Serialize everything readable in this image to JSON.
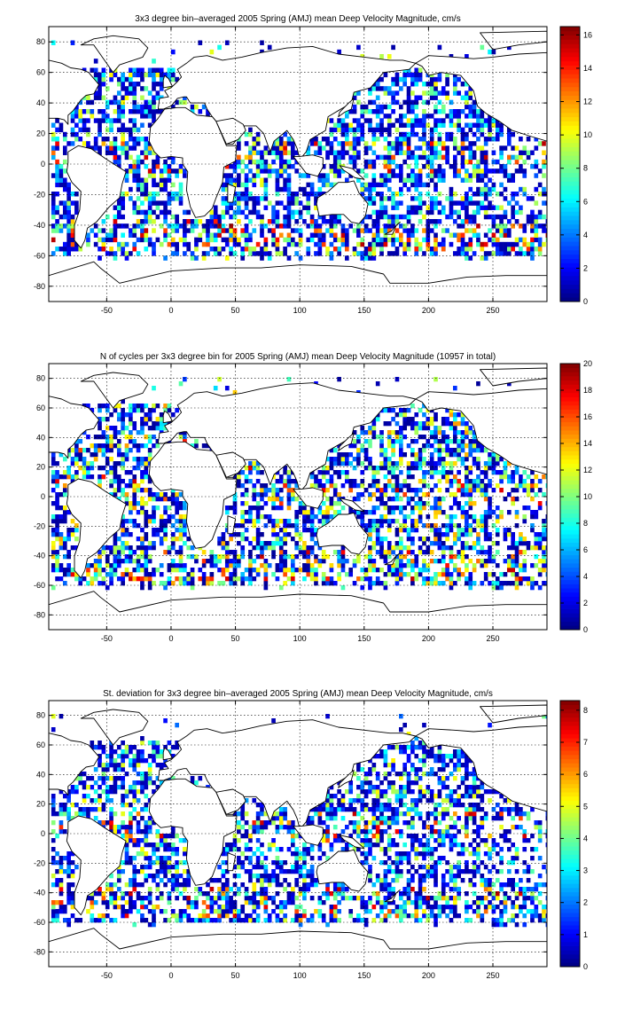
{
  "chart_data": [
    {
      "type": "heatmap",
      "title": "3x3 degree bin–averaged 2005 Spring (AMJ) mean Deep Velocity Magnitude, cm/s",
      "xlabel": "",
      "ylabel": "",
      "xlim": [
        -95,
        292
      ],
      "ylim": [
        -90,
        90
      ],
      "xticks": [
        -50,
        0,
        50,
        100,
        150,
        200,
        250
      ],
      "yticks": [
        -80,
        -60,
        -40,
        -20,
        0,
        20,
        40,
        60,
        80
      ],
      "grid": true,
      "bin_size_deg": 3,
      "colormap": "jet",
      "colorbar": {
        "min": 0,
        "max": 16.5,
        "ticks": [
          0,
          2,
          4,
          6,
          8,
          10,
          12,
          14,
          16
        ],
        "placement": "right"
      },
      "highlights": [
        {
          "lon": 38,
          "lat": -40,
          "value": 16
        },
        {
          "lon": 40,
          "lat": -45,
          "value": 15
        },
        {
          "lon": 47,
          "lat": -40,
          "value": 16
        },
        {
          "lon": 35,
          "lat": -37,
          "value": 14
        },
        {
          "lon": -43,
          "lat": -37,
          "value": 15
        },
        {
          "lon": -52,
          "lat": -56,
          "value": 15
        },
        {
          "lon": 165,
          "lat": -52,
          "value": 15
        },
        {
          "lon": 190,
          "lat": -55,
          "value": 14
        },
        {
          "lon": 210,
          "lat": -55,
          "value": 13
        },
        {
          "lon": 88,
          "lat": 8,
          "value": 13
        },
        {
          "lon": 60,
          "lat": 5,
          "value": 12
        },
        {
          "lon": 28,
          "lat": -19,
          "value": 14
        },
        {
          "lon": -70,
          "lat": 30,
          "value": 10
        },
        {
          "lon": 128,
          "lat": -55,
          "value": 14
        }
      ]
    },
    {
      "type": "heatmap",
      "title": "N of cycles per 3x3 degree bin for 2005 Spring (AMJ) mean Deep Velocity Magnitude (10957 in total)",
      "xlabel": "",
      "ylabel": "",
      "xlim": [
        -95,
        292
      ],
      "ylim": [
        -90,
        90
      ],
      "xticks": [
        -50,
        0,
        50,
        100,
        150,
        200,
        250
      ],
      "yticks": [
        -80,
        -60,
        -40,
        -20,
        0,
        20,
        40,
        60,
        80
      ],
      "grid": true,
      "bin_size_deg": 3,
      "colormap": "jet",
      "colorbar": {
        "min": 0,
        "max": 20,
        "ticks": [
          0,
          2,
          4,
          6,
          8,
          10,
          12,
          14,
          16,
          18,
          20
        ],
        "placement": "right"
      },
      "highlights": [
        {
          "lon": -70,
          "lat": 30,
          "value": 16
        },
        {
          "lon": -60,
          "lat": 25,
          "value": 14
        },
        {
          "lon": 62,
          "lat": 18,
          "value": 18
        },
        {
          "lon": 88,
          "lat": 8,
          "value": 17
        },
        {
          "lon": 95,
          "lat": -55,
          "value": 18
        },
        {
          "lon": 120,
          "lat": -57,
          "value": 17
        },
        {
          "lon": 200,
          "lat": -20,
          "value": 15
        },
        {
          "lon": 220,
          "lat": -25,
          "value": 14
        },
        {
          "lon": 10,
          "lat": 38,
          "value": 17
        }
      ]
    },
    {
      "type": "heatmap",
      "title": "St. deviation for 3x3 degree bin–averaged 2005 Spring (AMJ) mean Deep Velocity Magnitude, cm/s",
      "xlabel": "",
      "ylabel": "",
      "xlim": [
        -95,
        292
      ],
      "ylim": [
        -90,
        90
      ],
      "xticks": [
        -50,
        0,
        50,
        100,
        150,
        200,
        250
      ],
      "yticks": [
        -80,
        -60,
        -40,
        -20,
        0,
        20,
        40,
        60,
        80
      ],
      "grid": true,
      "bin_size_deg": 3,
      "colormap": "jet",
      "colorbar": {
        "min": 0,
        "max": 8.3,
        "ticks": [
          0,
          1,
          2,
          3,
          4,
          5,
          6,
          7,
          8
        ],
        "placement": "right"
      },
      "highlights": [
        {
          "lon": -85,
          "lat": -47,
          "value": 7
        },
        {
          "lon": 40,
          "lat": -40,
          "value": 6
        },
        {
          "lon": 170,
          "lat": -52,
          "value": 6.5
        },
        {
          "lon": 190,
          "lat": -55,
          "value": 6
        },
        {
          "lon": 100,
          "lat": -58,
          "value": 6
        },
        {
          "lon": 90,
          "lat": 8,
          "value": 6
        },
        {
          "lon": -65,
          "lat": 30,
          "value": 5
        }
      ]
    }
  ]
}
